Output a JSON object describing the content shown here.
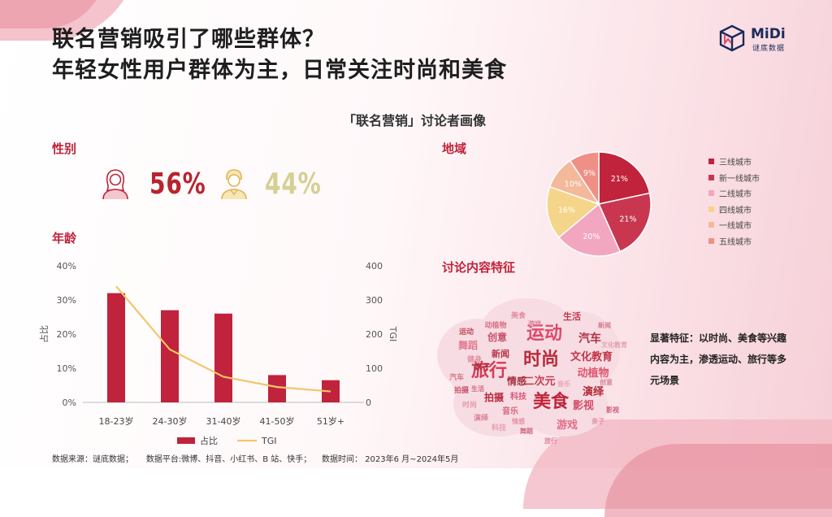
{
  "header": {
    "title_line1": "联名营销吸引了哪些群体？",
    "title_line2": "年轻女性用户群体为主，日常关注时尚和美食"
  },
  "logo": {
    "name": "MiDi",
    "sub": "谜底数据",
    "icon": "cube-icon"
  },
  "chart_title": "「联名营销」讨论者画像",
  "gender": {
    "label": "性别",
    "female": {
      "icon": "female-user-icon",
      "pct": "56%",
      "color": "#b8242f"
    },
    "male": {
      "icon": "male-user-icon",
      "pct": "44%",
      "color": "#d6cf93"
    }
  },
  "age_label": "年龄",
  "region_label": "地域",
  "content_label": "讨论内容特征",
  "feature_text": "显著特征：以时尚、美食等兴趣内容为主，渗透运动、旅行等多元场景",
  "footer": "数据来源：谜底数据；     数据平台:微博、抖音、小红书、B 站、快手；    数据时间： 2023年6 月~2024年5月",
  "colors": {
    "accent": "#c0233b",
    "bar": "#c0233b",
    "tgi_line": "#f2c66b"
  },
  "chart_data": [
    {
      "type": "bar",
      "categories": [
        "18-23岁",
        "24-30岁",
        "31-40岁",
        "41-50岁",
        "51岁+"
      ],
      "series": [
        {
          "name": "占比",
          "axis": "left",
          "type": "bar",
          "values": [
            32,
            27,
            26,
            8,
            6.5
          ]
        },
        {
          "name": "TGI",
          "axis": "right",
          "type": "line",
          "values": [
            340,
            155,
            75,
            45,
            32
          ]
        }
      ],
      "ylabel": "占比",
      "ylabel_right": "TGI",
      "ylim": [
        0,
        40
      ],
      "ylim_right": [
        0,
        400
      ],
      "yticks": [
        "0%",
        "10%",
        "20%",
        "30%",
        "40%"
      ],
      "yticks_right": [
        "0",
        "100",
        "200",
        "300",
        "400"
      ],
      "legend": "bottom"
    },
    {
      "type": "pie",
      "labels": [
        "三线城市",
        "新一线城市",
        "二线城市",
        "四线城市",
        "一线城市",
        "五线城市"
      ],
      "values": [
        21,
        21,
        20,
        16,
        10,
        9
      ],
      "value_labels": [
        "21%",
        "21%",
        "20%",
        "16%",
        "10%",
        "9%"
      ],
      "colors": [
        "#c0233b",
        "#c8374f",
        "#f2a6c0",
        "#f4d58a",
        "#f4b89a",
        "#ef8f86"
      ],
      "legend": "right"
    }
  ],
  "wordcloud": {
    "words": [
      {
        "text": "时尚",
        "color": "#b82a3a",
        "big": true
      },
      {
        "text": "美食",
        "color": "#c0233b",
        "big": true
      },
      {
        "text": "旅行",
        "color": "#d83a55",
        "big": true
      },
      {
        "text": "运动",
        "color": "#e0486a",
        "big": true
      },
      {
        "text": "汽车",
        "color": "#b03040"
      },
      {
        "text": "文化教育",
        "color": "#c43448"
      },
      {
        "text": "动植物",
        "color": "#e0546e"
      },
      {
        "text": "演绎",
        "color": "#b02836"
      },
      {
        "text": "影视",
        "color": "#d24a66"
      },
      {
        "text": "游戏",
        "color": "#e46a88"
      },
      {
        "text": "二次元",
        "color": "#c34056"
      },
      {
        "text": "情感",
        "color": "#a6303e"
      },
      {
        "text": "拍摄",
        "color": "#b8283e"
      },
      {
        "text": "科技",
        "color": "#d85a76"
      },
      {
        "text": "创意",
        "color": "#c85068"
      },
      {
        "text": "舞蹈",
        "color": "#e07a90"
      },
      {
        "text": "新闻",
        "color": "#b63446"
      },
      {
        "text": "生活",
        "color": "#c2384e"
      },
      {
        "text": "亲子",
        "color": "#a82c3a"
      },
      {
        "text": "音乐",
        "color": "#d8667e"
      },
      {
        "text": "美食",
        "color": "#e58aa0"
      },
      {
        "text": "动植物",
        "color": "#d9708a"
      },
      {
        "text": "运动",
        "color": "#c74a62"
      },
      {
        "text": "健身",
        "color": "#e290a4"
      },
      {
        "text": "汽车",
        "color": "#d7788e"
      },
      {
        "text": "拍摄",
        "color": "#c9596f"
      },
      {
        "text": "时尚",
        "color": "#e39aac"
      },
      {
        "text": "演绎",
        "color": "#d98296"
      },
      {
        "text": "科技",
        "color": "#e6a0b2"
      },
      {
        "text": "舞蹈",
        "color": "#d46880"
      },
      {
        "text": "旅行",
        "color": "#e2889e"
      },
      {
        "text": "新闻",
        "color": "#d77a90"
      },
      {
        "text": "文化教育",
        "color": "#e49fb0"
      },
      {
        "text": "影视",
        "color": "#cf6078"
      },
      {
        "text": "亲子",
        "color": "#e38ea4"
      },
      {
        "text": "游戏",
        "color": "#da7e94"
      },
      {
        "text": "音乐",
        "color": "#e6a4b4"
      },
      {
        "text": "生活",
        "color": "#d06a80"
      },
      {
        "text": "情感",
        "color": "#e595a8"
      },
      {
        "text": "创意",
        "color": "#dc849a"
      }
    ]
  }
}
